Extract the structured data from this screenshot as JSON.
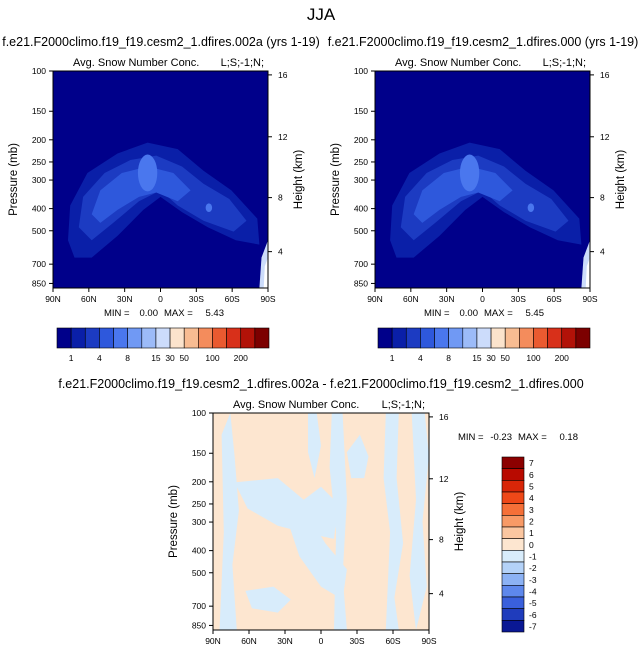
{
  "season": "JJA",
  "chart_data": [
    {
      "type": "contour",
      "title": "f.e21.F2000climo.f19_f19.cesm2_1.dfires.002a (yrs 1-19)",
      "subtitle_left": "Avg. Snow Number Conc.",
      "subtitle_right": "L;S;-1;N;",
      "ylabel": "Pressure (mb)",
      "ylabel_right": "Height (km)",
      "xticks": [
        "90N",
        "60N",
        "30N",
        "0",
        "30S",
        "60S",
        "90S"
      ],
      "yticks": [
        "100",
        "150",
        "200",
        "250",
        "300",
        "400",
        "500",
        "700",
        "850"
      ],
      "yticks_right": [
        "16",
        "12",
        "8",
        "4"
      ],
      "min_label": "MIN =",
      "min": "0.00",
      "max_label": "MAX =",
      "max": "5.43",
      "levels": [
        "1",
        "4",
        "8",
        "15",
        "30",
        "50",
        "100",
        "200"
      ]
    },
    {
      "type": "contour",
      "title": "f.e21.F2000climo.f19_f19.cesm2_1.dfires.000 (yrs 1-19)",
      "subtitle_left": "Avg. Snow Number Conc.",
      "subtitle_right": "L;S;-1;N;",
      "ylabel": "Pressure (mb)",
      "ylabel_right": "Height (km)",
      "xticks": [
        "90N",
        "60N",
        "30N",
        "0",
        "30S",
        "60S",
        "90S"
      ],
      "yticks": [
        "100",
        "150",
        "200",
        "250",
        "300",
        "400",
        "500",
        "700",
        "850"
      ],
      "yticks_right": [
        "16",
        "12",
        "8",
        "4"
      ],
      "min_label": "MIN =",
      "min": "0.00",
      "max_label": "MAX =",
      "max": "5.45",
      "levels": [
        "1",
        "4",
        "8",
        "15",
        "30",
        "50",
        "100",
        "200"
      ]
    },
    {
      "type": "contour",
      "title": "f.e21.F2000climo.f19_f19.cesm2_1.dfires.002a - f.e21.F2000climo.f19_f19.cesm2_1.dfires.000",
      "subtitle_left": "Avg. Snow Number Conc.",
      "subtitle_right": "L;S;-1;N;",
      "ylabel": "Pressure (mb)",
      "ylabel_right": "Height (km)",
      "xticks": [
        "90N",
        "60N",
        "30N",
        "0",
        "30S",
        "60S",
        "90S"
      ],
      "yticks": [
        "100",
        "150",
        "200",
        "250",
        "300",
        "400",
        "500",
        "700",
        "850"
      ],
      "yticks_right": [
        "16",
        "12",
        "8",
        "4"
      ],
      "min_label": "MIN =",
      "min": "-0.23",
      "max_label": "MAX =",
      "max": "0.18",
      "levels": [
        "7",
        "6",
        "5",
        "4",
        "3",
        "2",
        "1",
        "0",
        "-1",
        "-2",
        "-3",
        "-4",
        "-5",
        "-6",
        "-7"
      ]
    }
  ],
  "colors": {
    "seq": [
      "#00008a",
      "#0a1fa8",
      "#1c3bc2",
      "#2e58dc",
      "#4a77ee",
      "#7099f4",
      "#9cbbf8",
      "#ccdcfb",
      "#fbe3cc",
      "#f8bc92",
      "#f48c5c",
      "#ea5a30",
      "#d8301a",
      "#b21208",
      "#7c0000"
    ],
    "diff": [
      "#8c0000",
      "#b80a00",
      "#d82608",
      "#ee4818",
      "#f57038",
      "#f89a66",
      "#fbc6a0",
      "#fde6d0",
      "#d8ecfb",
      "#b4d2f8",
      "#8cb2f4",
      "#5e88ec",
      "#3a60dc",
      "#1f3cbc",
      "#0a1894"
    ],
    "frame": "#000000",
    "background": "#ffffff"
  }
}
